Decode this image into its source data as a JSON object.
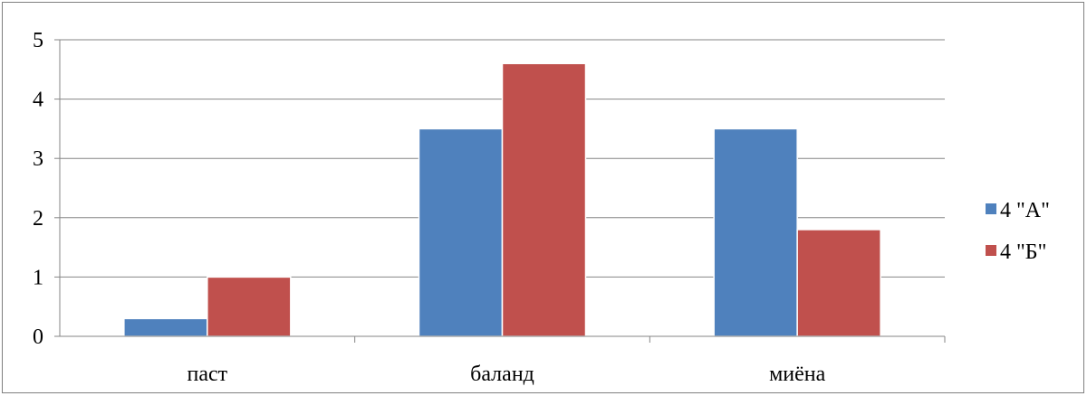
{
  "chart_data": {
    "type": "bar",
    "categories": [
      "паст",
      "баланд",
      "миёна"
    ],
    "series": [
      {
        "name": "4 \"А\"",
        "values": [
          0.3,
          3.5,
          3.5
        ],
        "color": "#4f81bd"
      },
      {
        "name": "4 \"Б\"",
        "values": [
          1.0,
          4.6,
          1.8
        ],
        "color": "#c0504d"
      }
    ],
    "ylim": [
      0,
      5
    ],
    "yticks": [
      "0",
      "1",
      "2",
      "3",
      "4",
      "5"
    ],
    "grid": true,
    "legend_position": "right"
  }
}
